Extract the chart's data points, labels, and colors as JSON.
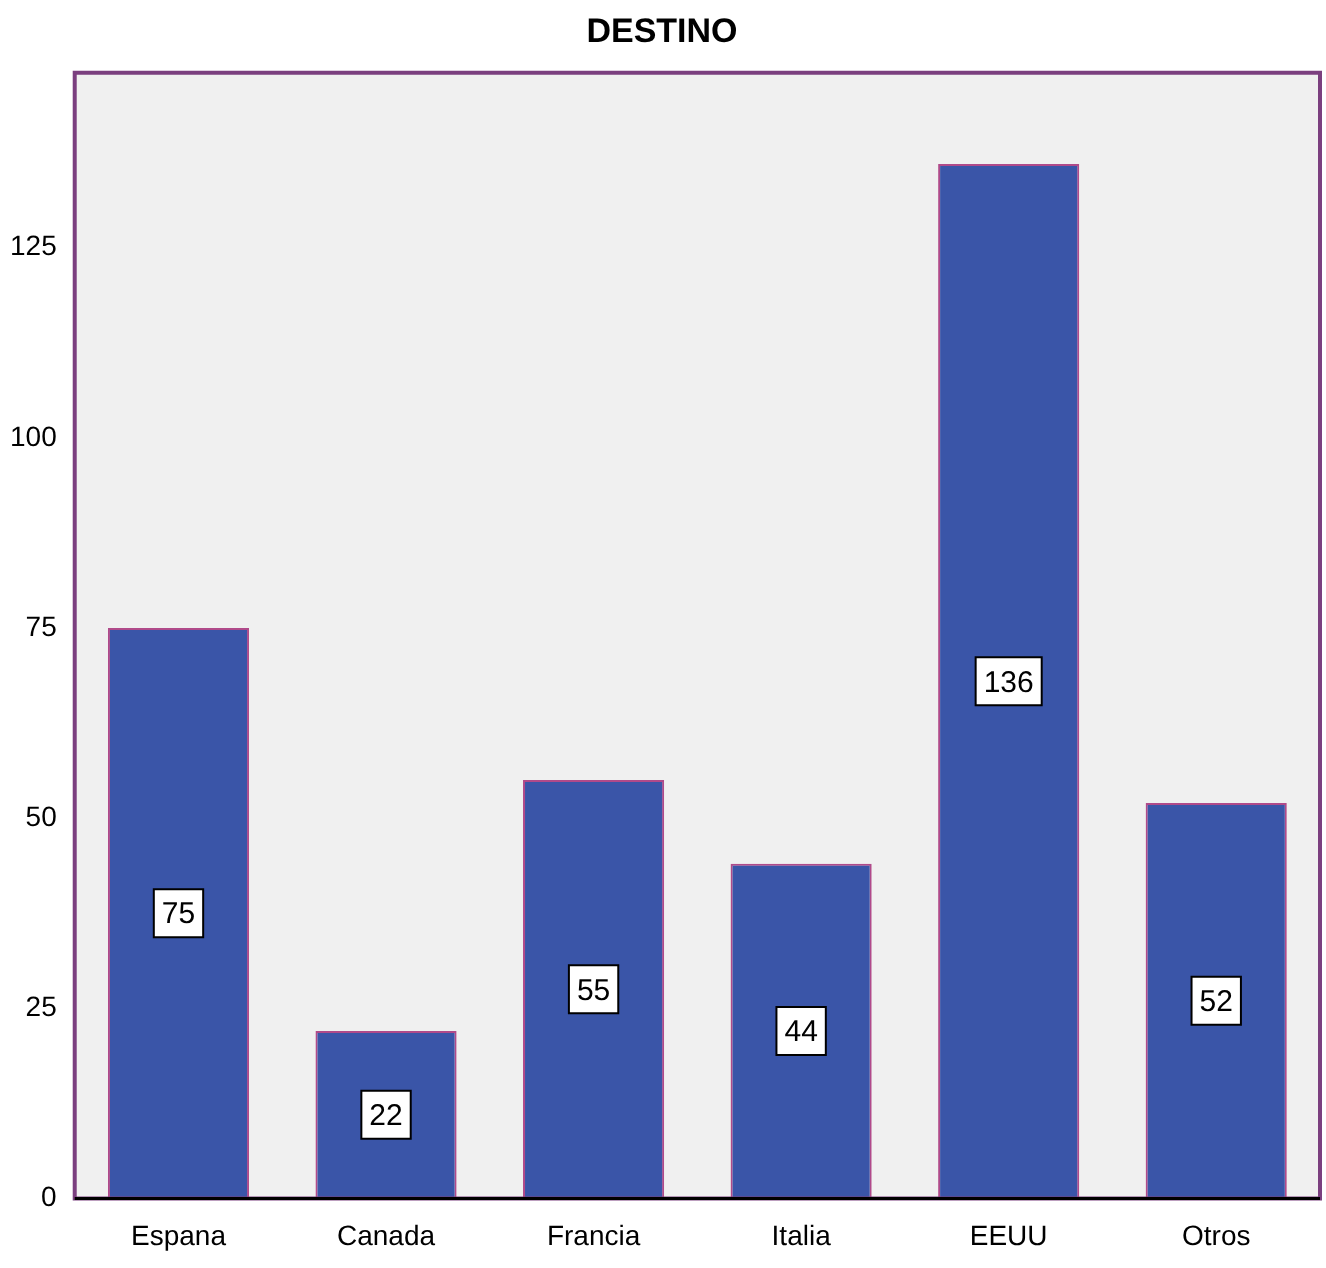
{
  "chart_data": {
    "type": "bar",
    "title": "DESTINO",
    "categories": [
      "Espana",
      "Canada",
      "Francia",
      "Italia",
      "EEUU",
      "Otros"
    ],
    "values": [
      75,
      22,
      55,
      44,
      136,
      52
    ],
    "color": "#3a55a8",
    "ylim": [
      0,
      148
    ],
    "yticks": [
      0,
      25,
      50,
      75,
      100,
      125
    ],
    "grid": false,
    "data_labels": true
  }
}
